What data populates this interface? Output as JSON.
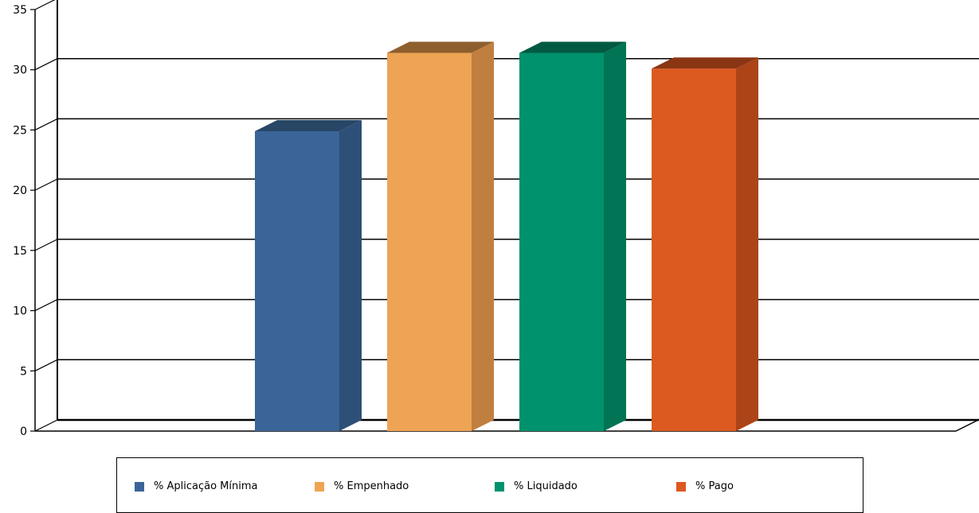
{
  "chart_data": {
    "type": "bar",
    "title": "",
    "xlabel": "",
    "ylabel": "",
    "ylim": [
      0,
      35
    ],
    "yticks": [
      0,
      5,
      10,
      15,
      20,
      25,
      30,
      35
    ],
    "grid": true,
    "legend_position": "bottom",
    "style": "3d",
    "series": [
      {
        "name": "% Aplicação Mínima",
        "value": 24.9,
        "color": "#3b6598",
        "side_color": "#2e4f77",
        "top_color": "#284666"
      },
      {
        "name": "% Empenhado",
        "value": 31.4,
        "color": "#eea454",
        "side_color": "#c17f3f",
        "top_color": "#8e5f2e"
      },
      {
        "name": "% Liquidado",
        "value": 31.4,
        "color": "#00926c",
        "side_color": "#007454",
        "top_color": "#005a42"
      },
      {
        "name": "% Pago",
        "value": 30.1,
        "color": "#dc5920",
        "side_color": "#ac4418",
        "top_color": "#8a3513"
      }
    ]
  }
}
